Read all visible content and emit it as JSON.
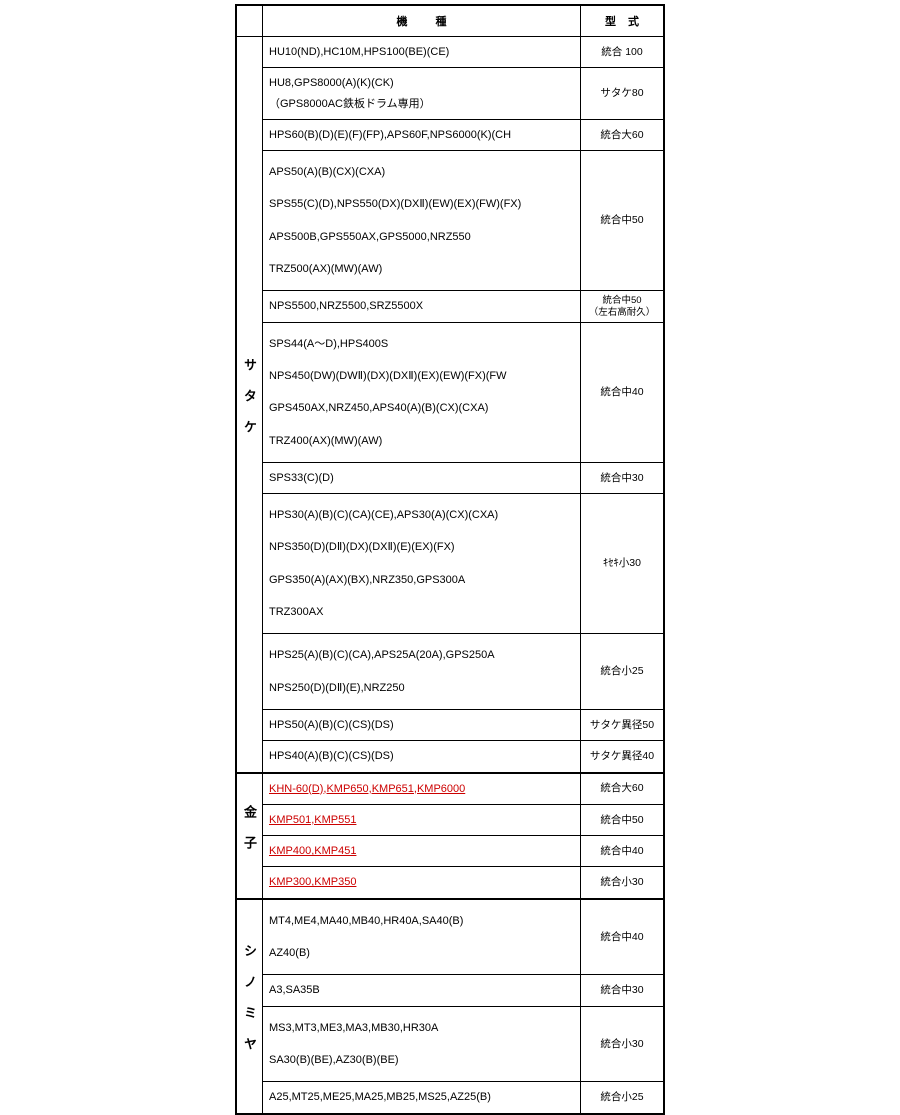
{
  "header": {
    "model": "機種",
    "type": "型式"
  },
  "groups": [
    {
      "maker": "サタケ",
      "rows": [
        {
          "model_lines": [
            "HU10(ND),HC10M,HPS100(BE)(CE)"
          ],
          "type": "統合 100"
        },
        {
          "model_lines": [
            "HU8,GPS8000(A)(K)(CK)",
            "（GPS8000AC鉄板ドラム専用）"
          ],
          "type": "サタケ80",
          "compact": true
        },
        {
          "model_lines": [
            "HPS60(B)(D)(E)(F)(FP),APS60F,NPS6000(K)(CH"
          ],
          "type": "統合大60"
        },
        {
          "model_lines": [
            "APS50(A)(B)(CX)(CXA)",
            "SPS55(C)(D),NPS550(DX)(DXⅡ)(EW)(EX)(FW)(FX)",
            "APS500B,GPS550AX,GPS5000,NRZ550",
            "TRZ500(AX)(MW)(AW)"
          ],
          "type": "統合中50"
        },
        {
          "model_lines": [
            "NPS5500,NRZ5500,SRZ5500X"
          ],
          "type": "統合中50\n（左右高耐久）"
        },
        {
          "model_lines": [
            "SPS44(A～D),HPS400S",
            "NPS450(DW)(DWⅡ)(DX)(DXⅡ)(EX)(EW)(FX)(FW",
            "GPS450AX,NRZ450,APS40(A)(B)(CX)(CXA)",
            "TRZ400(AX)(MW)(AW)"
          ],
          "type": "統合中40"
        },
        {
          "model_lines": [
            "SPS33(C)(D)"
          ],
          "type": "統合中30"
        },
        {
          "model_lines": [
            "HPS30(A)(B)(C)(CA)(CE),APS30(A)(CX)(CXA)",
            "NPS350(D)(DⅡ)(DX)(DXⅡ)(E)(EX)(FX)",
            "GPS350(A)(AX)(BX),NRZ350,GPS300A",
            "TRZ300AX"
          ],
          "type": "ｷｾｷ小30"
        },
        {
          "model_lines": [
            "HPS25(A)(B)(C)(CA),APS25A(20A),GPS250A",
            "NPS250(D)(DⅡ)(E),NRZ250"
          ],
          "type": "統合小25"
        },
        {
          "model_lines": [
            "HPS50(A)(B)(C)(CS)(DS)"
          ],
          "type": "サタケ異径50"
        },
        {
          "model_lines": [
            "HPS40(A)(B)(C)(CS)(DS)"
          ],
          "type": "サタケ異径40"
        }
      ]
    },
    {
      "maker": "金子",
      "rows": [
        {
          "model_lines": [
            "KHN-60(D),KMP650,KMP651,KMP6000"
          ],
          "type": "統合大60",
          "link": true
        },
        {
          "model_lines": [
            "KMP501,KMP551"
          ],
          "type": "統合中50",
          "link": true
        },
        {
          "model_lines": [
            "KMP400,KMP451"
          ],
          "type": "統合中40",
          "link": true
        },
        {
          "model_lines": [
            "KMP300,KMP350"
          ],
          "type": "統合小30",
          "link": true
        }
      ]
    },
    {
      "maker": "シノミヤ",
      "rows": [
        {
          "model_lines": [
            "MT4,ME4,MA40,MB40,HR40A,SA40(B)",
            "AZ40(B)"
          ],
          "type": "統合中40"
        },
        {
          "model_lines": [
            "A3,SA35B"
          ],
          "type": "統合中30"
        },
        {
          "model_lines": [
            "MS3,MT3,ME3,MA3,MB30,HR30A",
            "SA30(B)(BE),AZ30(B)(BE)"
          ],
          "type": "統合小30"
        },
        {
          "model_lines": [
            "A25,MT25,ME25,MA25,MB25,MS25,AZ25(B)"
          ],
          "type": "統合小25"
        }
      ]
    }
  ]
}
